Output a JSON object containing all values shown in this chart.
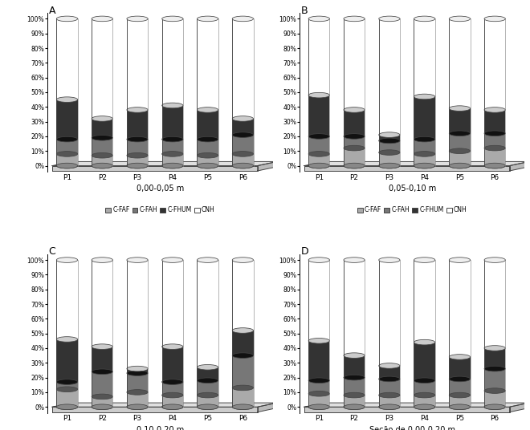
{
  "panels": [
    "A",
    "B",
    "C",
    "D"
  ],
  "subtitles": [
    "0,00-0,05 m",
    "0,05-0,10 m",
    "0,10-0,20 m",
    "Seção de 0,00-0,20 m"
  ],
  "categories": [
    "P1",
    "P2",
    "P3",
    "P4",
    "P5",
    "P6"
  ],
  "legend_labels": [
    "C-FAF",
    "C-FAH",
    "C-FHUM",
    "CNH"
  ],
  "colors": [
    "#aaaaaa",
    "#777777",
    "#333333",
    "#ffffff"
  ],
  "colors_side": [
    "#888888",
    "#555555",
    "#111111",
    "#cccccc"
  ],
  "colors_top": [
    "#cccccc",
    "#999999",
    "#555555",
    "#eeeeee"
  ],
  "data": {
    "A": {
      "C-FAF": [
        8,
        7,
        7,
        8,
        7,
        8
      ],
      "C-FAH": [
        10,
        12,
        11,
        10,
        11,
        13
      ],
      "C-FHUM": [
        27,
        13,
        20,
        23,
        20,
        11
      ],
      "CNH": [
        55,
        68,
        62,
        59,
        62,
        68
      ]
    },
    "B": {
      "C-FAF": [
        8,
        12,
        9,
        8,
        10,
        12
      ],
      "C-FAH": [
        12,
        8,
        8,
        10,
        12,
        10
      ],
      "C-FHUM": [
        28,
        18,
        4,
        29,
        17,
        16
      ],
      "CNH": [
        52,
        62,
        79,
        53,
        61,
        62
      ]
    },
    "C": {
      "C-FAF": [
        12,
        7,
        10,
        8,
        8,
        13
      ],
      "C-FAH": [
        5,
        17,
        13,
        9,
        10,
        22
      ],
      "C-FHUM": [
        29,
        17,
        3,
        24,
        9,
        17
      ],
      "CNH": [
        54,
        59,
        74,
        59,
        73,
        48
      ]
    },
    "D": {
      "C-FAF": [
        9,
        8,
        8,
        8,
        8,
        11
      ],
      "C-FAH": [
        9,
        12,
        11,
        10,
        11,
        15
      ],
      "C-FHUM": [
        27,
        15,
        9,
        26,
        15,
        14
      ],
      "CNH": [
        55,
        65,
        72,
        56,
        66,
        60
      ]
    }
  },
  "background_color": "#ffffff",
  "figure_width": 6.6,
  "figure_height": 5.36
}
